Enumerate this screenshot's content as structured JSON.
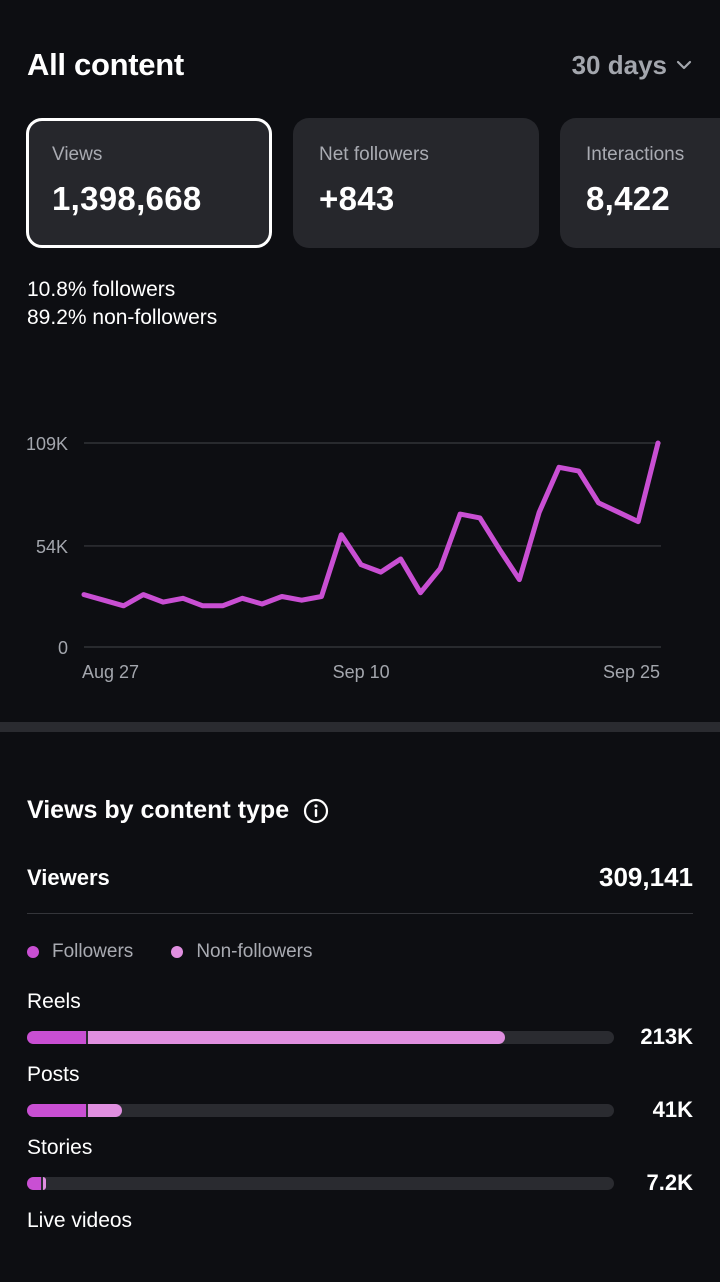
{
  "header": {
    "title": "All content",
    "range_label": "30 days"
  },
  "cards": [
    {
      "label": "Views",
      "value": "1,398,668",
      "selected": true
    },
    {
      "label": "Net followers",
      "value": "+843",
      "selected": false
    },
    {
      "label": "Interactions",
      "value": "8,422",
      "selected": false
    }
  ],
  "audience_split": {
    "followers_pct": "10.8%",
    "followers_label": "followers",
    "non_followers_pct": "89.2%",
    "non_followers_label": "non-followers"
  },
  "chart_data": {
    "type": "line",
    "title": "",
    "xlabel": "",
    "ylabel": "",
    "ylim": [
      0,
      109000
    ],
    "y_ticks": [
      0,
      54000,
      109000
    ],
    "y_tick_labels": [
      "0",
      "54K",
      "109K"
    ],
    "x_tick_labels": [
      "Aug 27",
      "Sep 10",
      "Sep 25"
    ],
    "x_tick_index": [
      0,
      14,
      29
    ],
    "grid": true,
    "color": "#c94fd3",
    "series": [
      {
        "values": [
          28000,
          25000,
          22000,
          28000,
          24000,
          26000,
          22000,
          22000,
          26000,
          23000,
          27000,
          25000,
          27000,
          60000,
          44000,
          40000,
          47000,
          29000,
          42000,
          71000,
          69000,
          52000,
          36000,
          72000,
          96000,
          94000,
          77000,
          72000,
          67000,
          109000
        ]
      }
    ]
  },
  "content_type": {
    "title": "Views by content type",
    "info_icon": "info-icon",
    "viewers_label": "Viewers",
    "viewers_value": "309,141",
    "legend": [
      {
        "label": "Followers",
        "color": "#c94fd3"
      },
      {
        "label": "Non-followers",
        "color": "#e08fe0"
      }
    ],
    "rows": [
      {
        "label": "Reels",
        "value": "213K",
        "followers_fraction": 0.1,
        "non_followers_fraction": 0.715
      },
      {
        "label": "Posts",
        "value": "41K",
        "followers_fraction": 0.1,
        "non_followers_fraction": 0.062
      },
      {
        "label": "Stories",
        "value": "7.2K",
        "followers_fraction": 0.024,
        "non_followers_fraction": 0.008
      },
      {
        "label": "Live videos",
        "value": "",
        "followers_fraction": 0,
        "non_followers_fraction": 0
      }
    ]
  }
}
